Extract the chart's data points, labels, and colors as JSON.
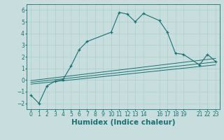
{
  "xlabel": "Humidex (Indice chaleur)",
  "ylabel": "",
  "bg_color": "#c8dede",
  "line_color": "#1a7070",
  "xlim": [
    -0.5,
    23.5
  ],
  "ylim": [
    -2.5,
    6.5
  ],
  "xtick_positions": [
    0,
    1,
    2,
    3,
    4,
    5,
    6,
    7,
    8,
    9,
    10,
    11,
    12,
    13,
    14,
    16,
    17,
    18,
    19,
    21,
    22,
    23
  ],
  "xtick_labels": [
    "0",
    "1",
    "2",
    "3",
    "4",
    "5",
    "6",
    "7",
    "8",
    "9",
    "10",
    "11",
    "12",
    "13",
    "14",
    "16",
    "17",
    "18",
    "19",
    "21",
    "22",
    "23"
  ],
  "yticks": [
    -2,
    -1,
    0,
    1,
    2,
    3,
    4,
    5,
    6
  ],
  "main_x": [
    0,
    1,
    2,
    3,
    4,
    5,
    6,
    7,
    10,
    11,
    12,
    13,
    14,
    16,
    17,
    18,
    19,
    21,
    22,
    23
  ],
  "main_y": [
    -1.3,
    -2.0,
    -0.5,
    -0.1,
    0.05,
    1.2,
    2.6,
    3.3,
    4.1,
    5.8,
    5.65,
    5.0,
    5.7,
    5.1,
    4.1,
    2.3,
    2.2,
    1.3,
    2.2,
    1.6
  ],
  "reg_lines": [
    {
      "x": [
        0,
        23
      ],
      "y": [
        -0.35,
        1.3
      ]
    },
    {
      "x": [
        0,
        23
      ],
      "y": [
        -0.2,
        1.55
      ]
    },
    {
      "x": [
        0,
        23
      ],
      "y": [
        -0.05,
        1.85
      ]
    }
  ],
  "grid_color": "#aacece",
  "tick_label_fontsize": 5.5,
  "xlabel_fontsize": 7.5
}
